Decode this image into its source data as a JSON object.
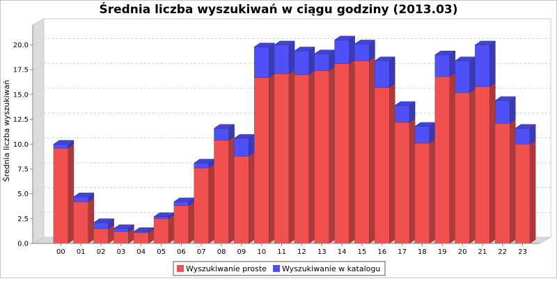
{
  "chart_data": {
    "type": "bar",
    "stacked": true,
    "three_d": true,
    "title": "Średnia liczba wyszukiwań w ciągu godziny (2013.03)",
    "xlabel": "",
    "ylabel": "Średnia liczba wyszukiwań",
    "ylim": [
      0,
      22
    ],
    "yticks": [
      "0.0",
      "2.5",
      "5.0",
      "7.5",
      "10.0",
      "12.5",
      "15.0",
      "17.5",
      "20.0"
    ],
    "grid": true,
    "legend_position": "bottom",
    "categories": [
      "00",
      "01",
      "02",
      "03",
      "04",
      "05",
      "06",
      "07",
      "08",
      "09",
      "10",
      "11",
      "12",
      "13",
      "14",
      "15",
      "16",
      "17",
      "18",
      "19",
      "20",
      "21",
      "22",
      "23"
    ],
    "series": [
      {
        "name": "Wyszukiwanie proste",
        "color": "#f05050",
        "values": [
          9.6,
          4.2,
          1.5,
          1.2,
          1.1,
          2.5,
          3.8,
          7.6,
          10.4,
          8.8,
          16.7,
          17.1,
          17.0,
          17.4,
          18.1,
          18.4,
          15.7,
          12.2,
          10.1,
          16.8,
          15.2,
          15.8,
          12.1,
          10.0
        ]
      },
      {
        "name": "Wyszukiwanie w katalogu",
        "color": "#5050f8",
        "values": [
          0.4,
          0.5,
          0.6,
          0.3,
          0.1,
          0.2,
          0.4,
          0.5,
          1.2,
          1.8,
          3.1,
          2.9,
          2.4,
          1.7,
          2.4,
          1.7,
          2.7,
          1.7,
          1.7,
          2.2,
          3.2,
          4.2,
          2.3,
          1.6
        ]
      }
    ]
  }
}
